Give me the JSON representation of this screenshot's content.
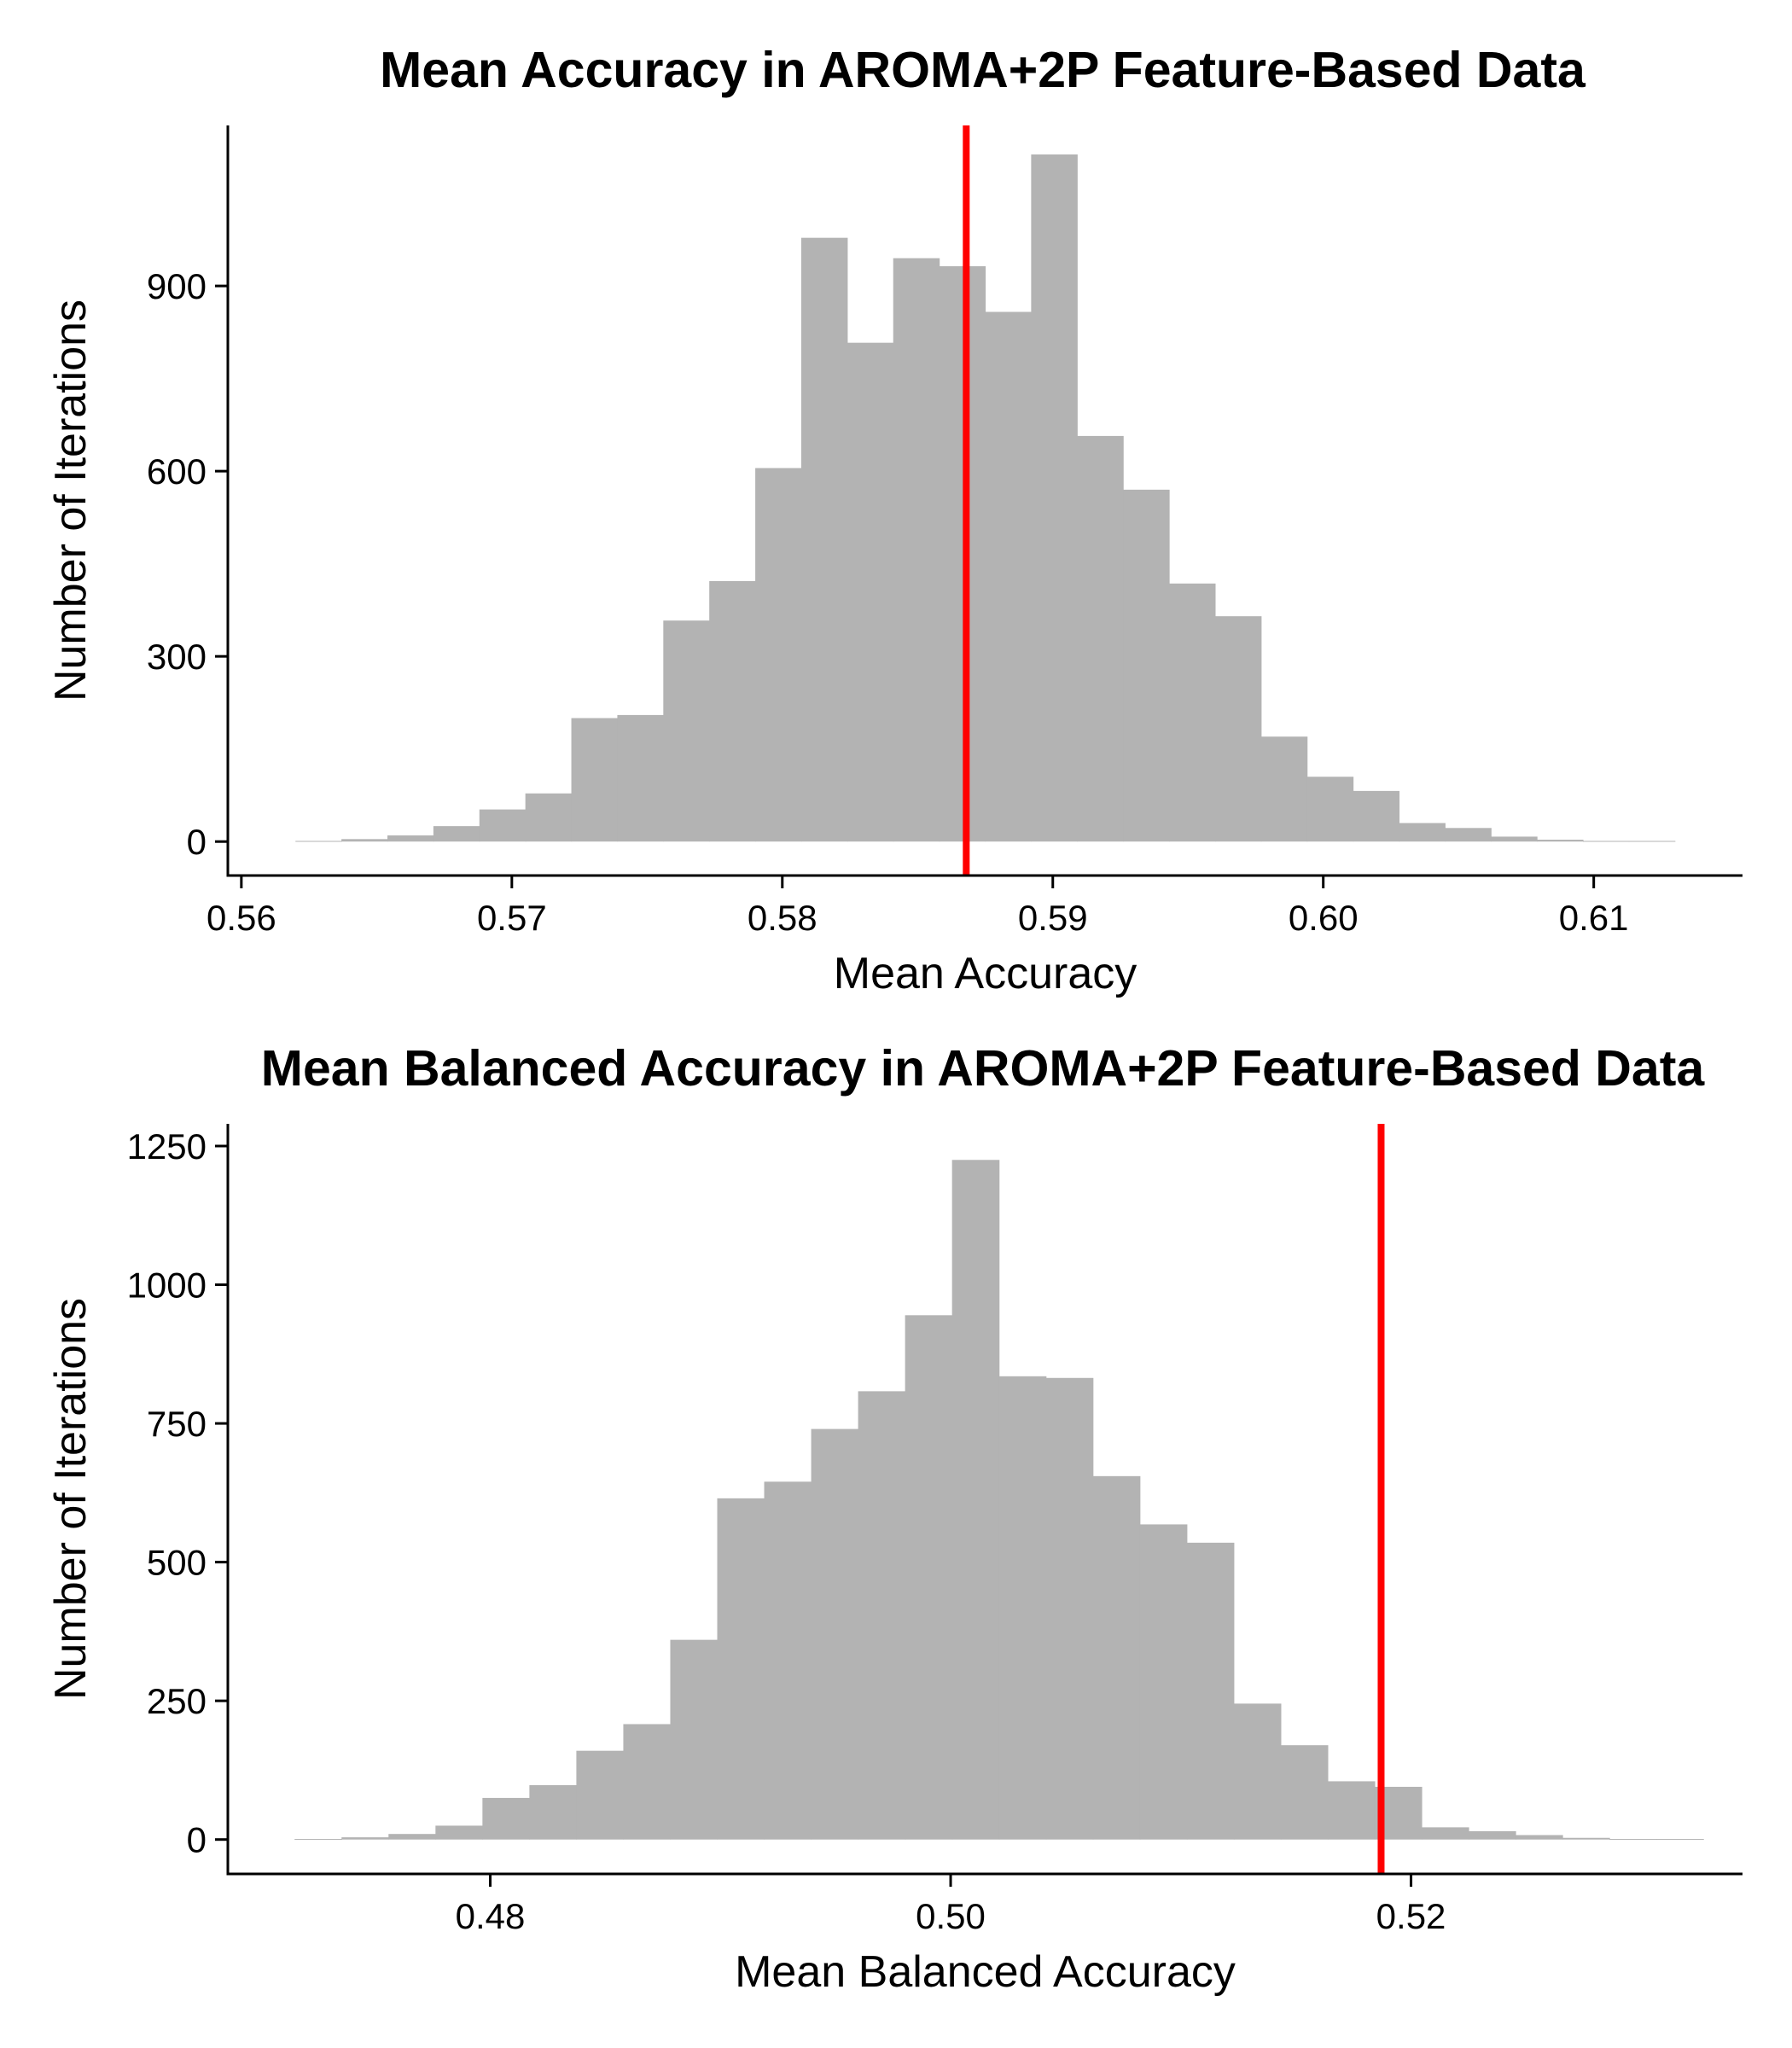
{
  "chart_data": [
    {
      "type": "bar",
      "title": "Mean Accuracy in AROMA+2P Feature-Based Data",
      "xlabel": "Mean Accuracy",
      "ylabel": "Number of Iterations",
      "xlim": [
        0.5595,
        0.6155
      ],
      "ylim": [
        -55,
        1160
      ],
      "xticks": [
        0.56,
        0.57,
        0.58,
        0.59,
        0.6,
        0.61
      ],
      "xtick_labels": [
        "0.56",
        "0.57",
        "0.58",
        "0.59",
        "0.60",
        "0.61"
      ],
      "yticks": [
        0,
        300,
        600,
        900
      ],
      "ytick_labels": [
        "0",
        "300",
        "600",
        "900"
      ],
      "bin_start": 0.562,
      "bin_width": 0.0017,
      "counts": [
        1,
        4,
        10,
        25,
        52,
        78,
        200,
        205,
        358,
        422,
        605,
        978,
        808,
        945,
        932,
        858,
        1113,
        657,
        570,
        418,
        365,
        170,
        105,
        82,
        30,
        22,
        8,
        3,
        1,
        1
      ],
      "bar_color": "#b3b3b3",
      "reference_line": {
        "x": 0.5868,
        "color": "#ff0000"
      },
      "grid": false,
      "legend": "none"
    },
    {
      "type": "bar",
      "title": "Mean Balanced Accuracy in AROMA+2P Feature-Based Data",
      "xlabel": "Mean Balanced Accuracy",
      "ylabel": "Number of Iterations",
      "xlim": [
        0.4686,
        0.5344
      ],
      "ylim": [
        -62,
        1290
      ],
      "xticks": [
        0.48,
        0.5,
        0.52
      ],
      "xtick_labels": [
        "0.48",
        "0.50",
        "0.52"
      ],
      "yticks": [
        0,
        250,
        500,
        750,
        1000,
        1250
      ],
      "ytick_labels": [
        "0",
        "250",
        "500",
        "750",
        "1000",
        "1250"
      ],
      "bin_start": 0.4715,
      "bin_width": 0.00204,
      "counts": [
        1,
        4,
        10,
        25,
        75,
        98,
        160,
        208,
        360,
        615,
        645,
        740,
        808,
        945,
        1225,
        835,
        832,
        655,
        568,
        535,
        245,
        170,
        105,
        95,
        22,
        15,
        8,
        3,
        1,
        1
      ],
      "bar_color": "#b3b3b3",
      "reference_line": {
        "x": 0.5187,
        "color": "#ff0000"
      },
      "grid": false,
      "legend": "none"
    }
  ]
}
